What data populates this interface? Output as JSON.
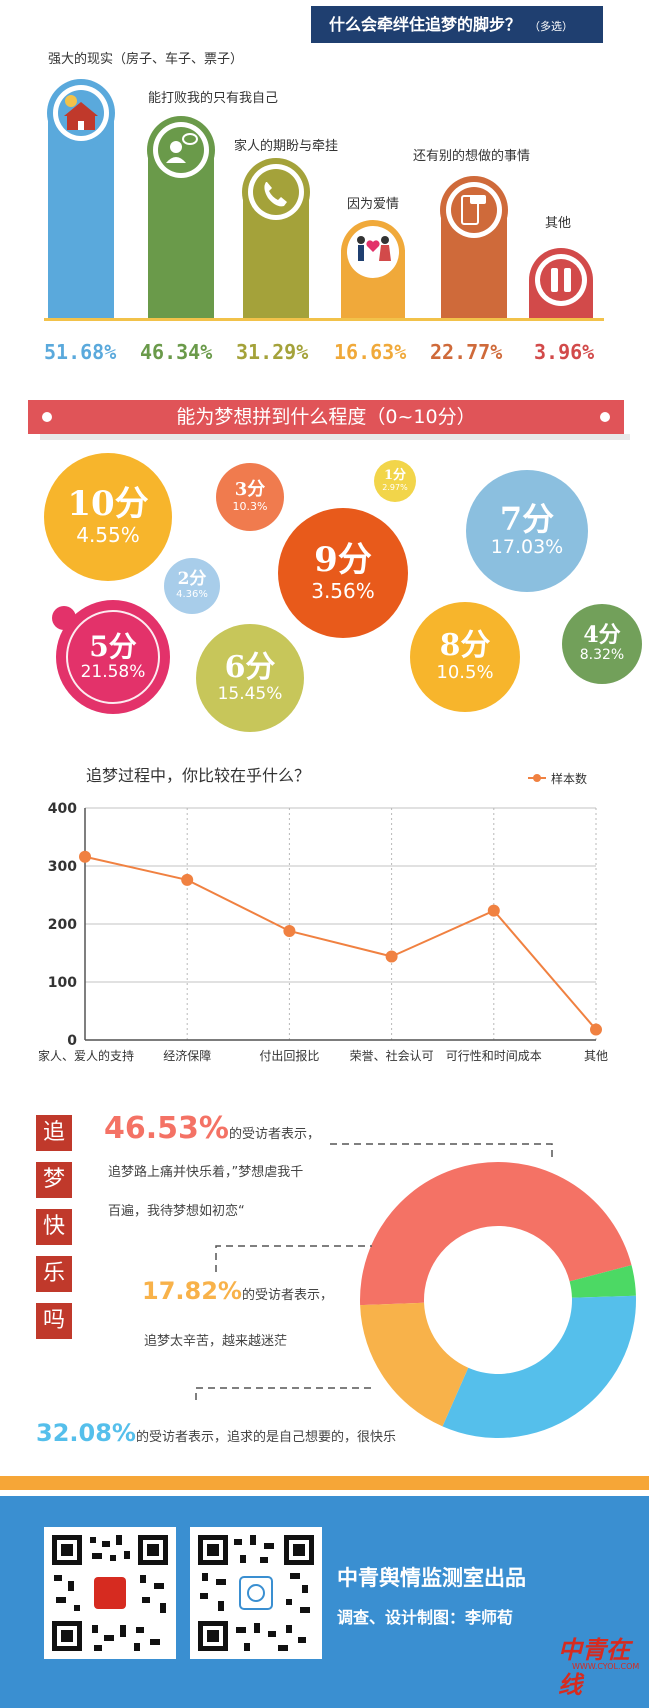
{
  "section1": {
    "title": "什么会牵绊住追梦的脚步？",
    "subtitle": "（多选）",
    "items": [
      {
        "label": "强大的现实（房子、车子、票子）",
        "value": "51.68%",
        "color": "#5aa9dc",
        "icon": "house-money-icon"
      },
      {
        "label": "能打败我的只有我自己",
        "value": "46.34%",
        "color": "#6a9a4a",
        "icon": "person-speech-icon"
      },
      {
        "label": "家人的期盼与牵挂",
        "value": "31.29%",
        "color": "#a4a23a",
        "icon": "phone-icon"
      },
      {
        "label": "因为爱情",
        "value": "16.63%",
        "color": "#f0a93a",
        "icon": "couple-heart-icon"
      },
      {
        "label": "还有别的想做的事情",
        "value": "22.77%",
        "color": "#cf6a3a",
        "icon": "smartphone-chat-icon"
      },
      {
        "label": "其他",
        "value": "3.96%",
        "color": "#d24a4a",
        "icon": "pause-icon"
      }
    ]
  },
  "section2": {
    "title": "能为梦想拼到什么程度（0~10分）",
    "bubbles": [
      {
        "score": "10分",
        "pct": "4.55%",
        "color": "#f7b52c"
      },
      {
        "score": "3分",
        "pct": "10.3%",
        "color": "#f07b4e"
      },
      {
        "score": "1分",
        "pct": "2.97%",
        "color": "#f2d54a"
      },
      {
        "score": "2分",
        "pct": "4.36%",
        "color": "#a8cdea"
      },
      {
        "score": "9分",
        "pct": "3.56%",
        "color": "#e85a1b"
      },
      {
        "score": "7分",
        "pct": "17.03%",
        "color": "#8bbfdf"
      },
      {
        "score": "5分",
        "pct": "21.58%",
        "color": "#e3326a"
      },
      {
        "score": "6分",
        "pct": "15.45%",
        "color": "#c7c65a"
      },
      {
        "score": "8分",
        "pct": "10.5%",
        "color": "#f7b52c"
      },
      {
        "score": "4分",
        "pct": "8.32%",
        "color": "#72a05a"
      }
    ]
  },
  "chart_data": {
    "type": "line",
    "title": "追梦过程中，你比较在乎什么？",
    "categories": [
      "家人、爱人的支持",
      "经济保障",
      "付出回报比",
      "荣誉、社会认可",
      "可行性和时间成本",
      "其他"
    ],
    "series": [
      {
        "name": "样本数",
        "values": [
          316,
          276,
          188,
          144,
          223,
          18
        ]
      }
    ],
    "ylim": [
      0,
      400
    ],
    "yticks": [
      "0",
      "100",
      "200",
      "300",
      "400"
    ],
    "legend": "top-right",
    "color": "#f08141"
  },
  "section4": {
    "title_chars": [
      "追",
      "梦",
      "快",
      "乐",
      "吗"
    ],
    "stats": [
      {
        "pct": "46.53%",
        "lead": "的受访者表示，",
        "line2": "追梦路上痛并快乐着，”梦想虐我千",
        "line3": "百遍，我待梦想如初恋“",
        "color": "#f47265"
      },
      {
        "pct": "17.82%",
        "lead": "的受访者表示，",
        "line2": "追梦太辛苦，越来越迷茫",
        "color": "#f8b24a"
      },
      {
        "pct": "32.08%",
        "lead": "的受访者表示，追求的是自己想要的，很快乐",
        "color": "#55bfeb"
      }
    ],
    "donut": [
      {
        "value": 46.53,
        "color": "#f47265"
      },
      {
        "value": 3.57,
        "color": "#4cd964"
      },
      {
        "value": 32.08,
        "color": "#55bfeb"
      },
      {
        "value": 17.82,
        "color": "#f8b24a"
      }
    ]
  },
  "footer": {
    "line1": "中青舆情监测室出品",
    "line2": "调查、设计制图：李师荀",
    "logo": "中青在线",
    "logo_sub": "WWW.CYOL.COM"
  }
}
